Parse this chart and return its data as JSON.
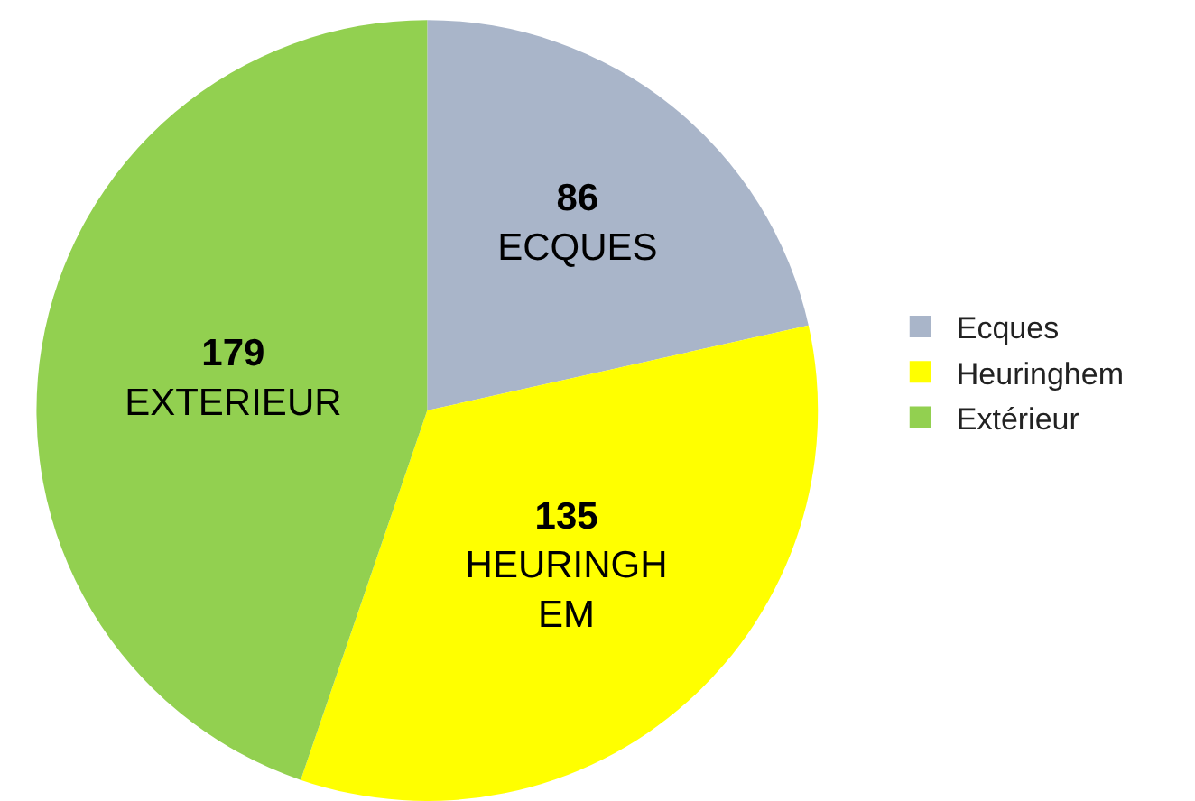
{
  "chart_data": {
    "type": "pie",
    "categories": [
      "Ecques",
      "Heuringhem",
      "Extérieur"
    ],
    "values": [
      86,
      135,
      179
    ],
    "colors": [
      "#a9b5c9",
      "#ffff00",
      "#92d050"
    ],
    "value_labels": [
      "86\nECQUES",
      "135\nHEURINGHEM",
      "179\nEXTERIEUR"
    ],
    "legend": "right"
  }
}
